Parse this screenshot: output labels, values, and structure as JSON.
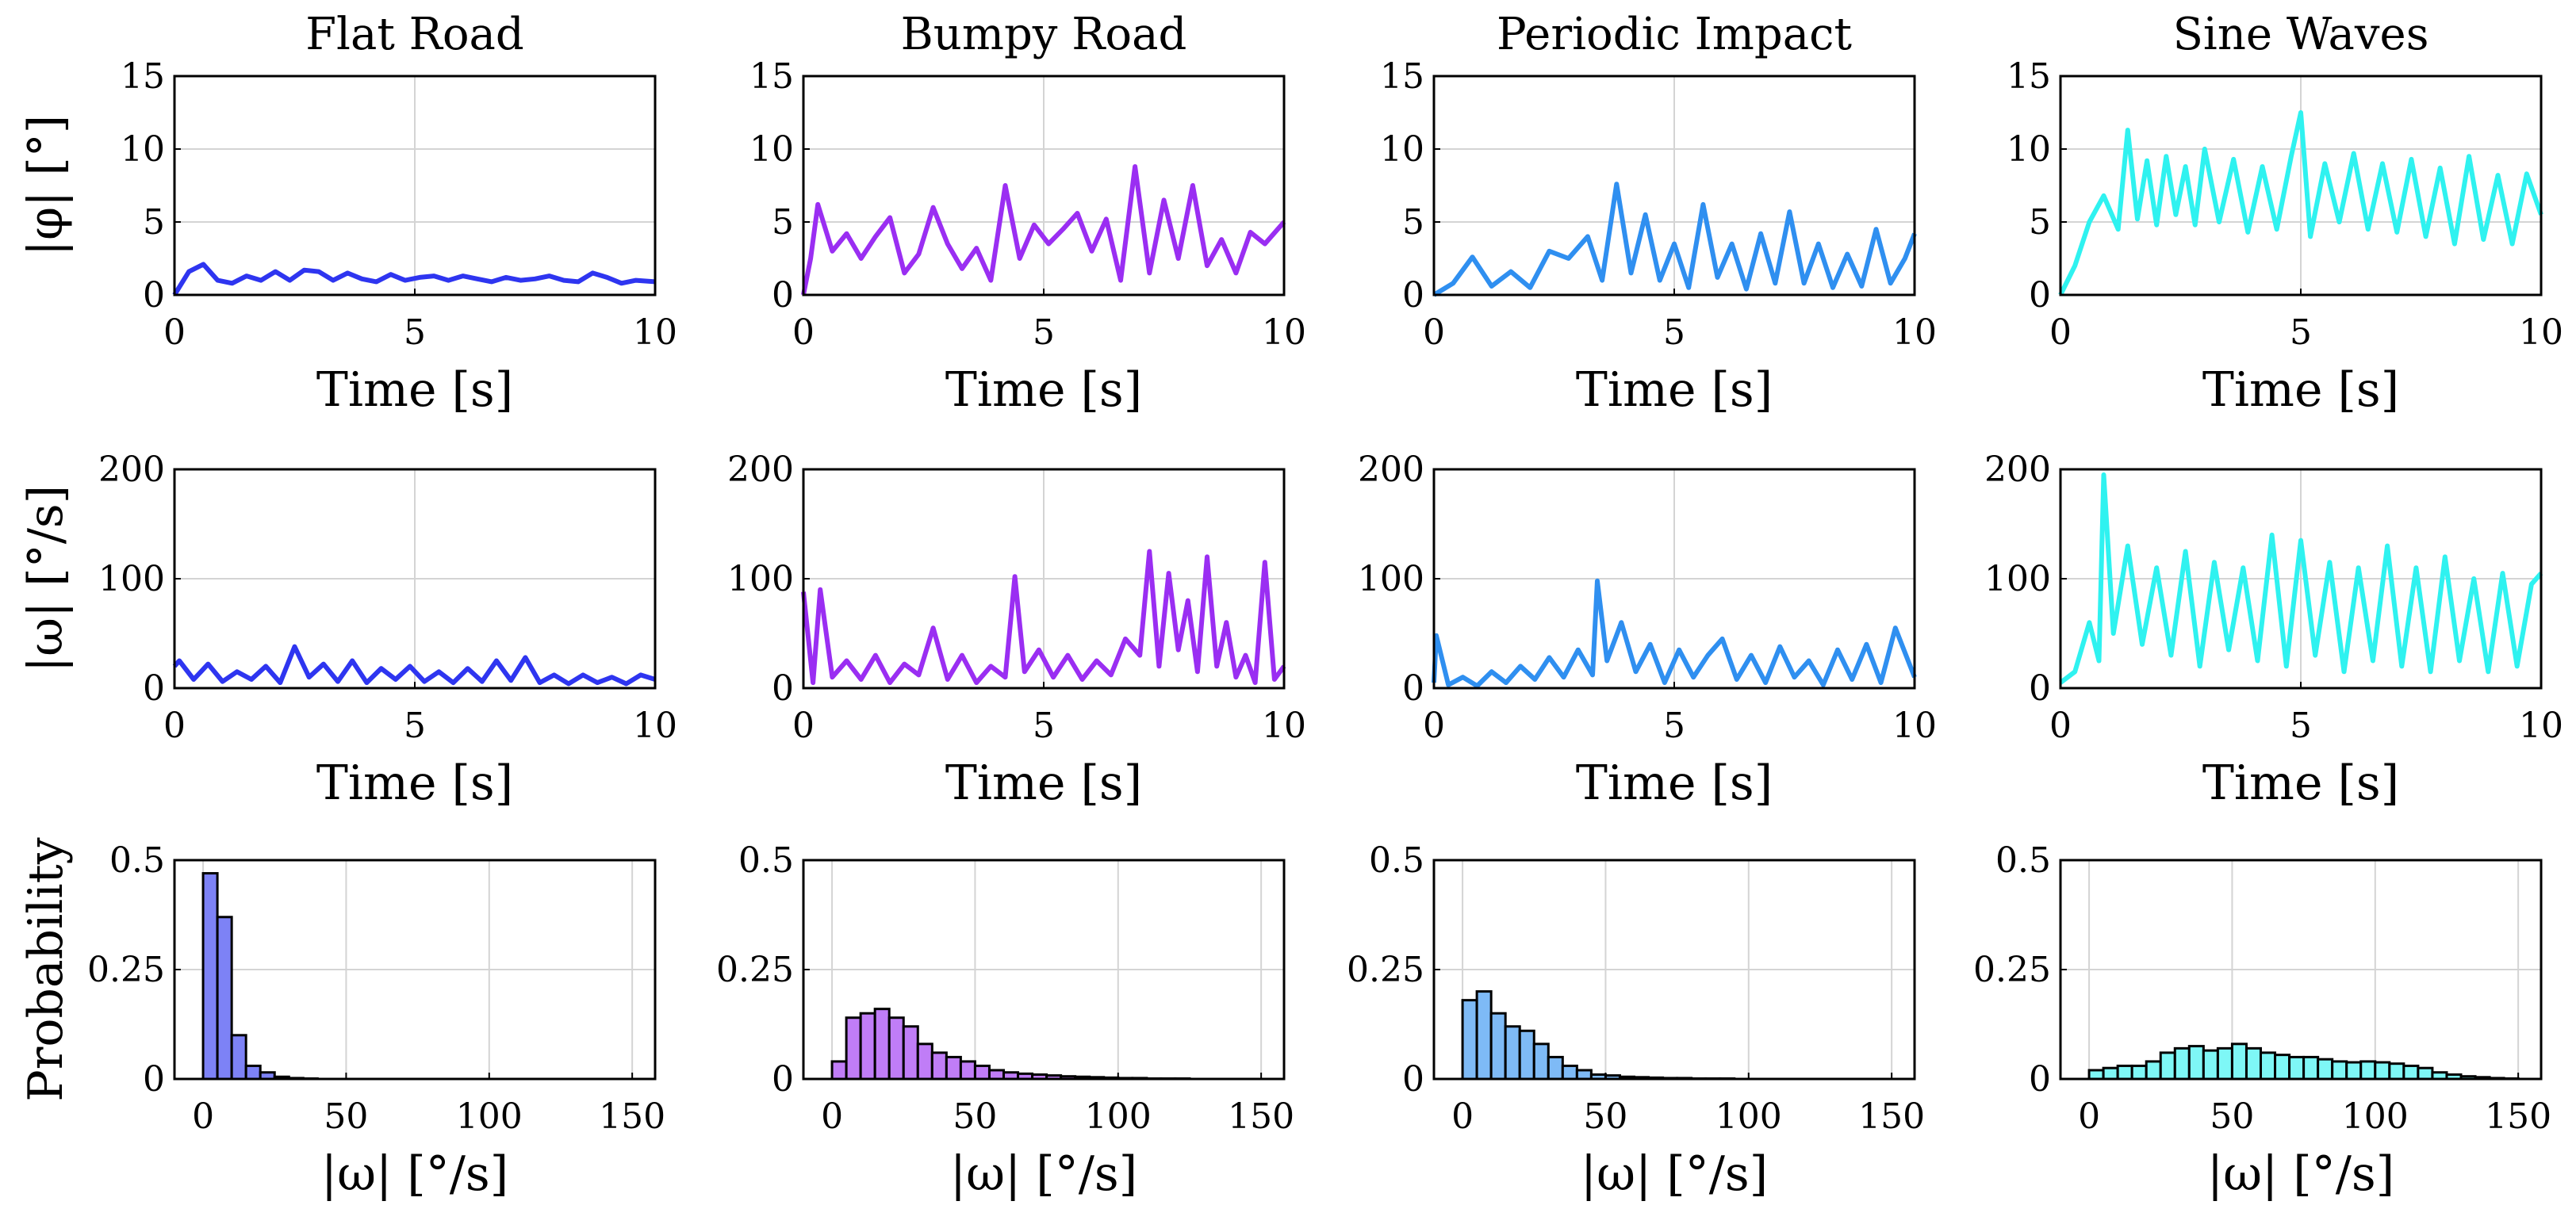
{
  "chart_data": {
    "type": "grid",
    "columns": [
      {
        "title": "Flat Road",
        "color": "#2e35f0"
      },
      {
        "title": "Bumpy Road",
        "color": "#9a2ef2"
      },
      {
        "title": "Periodic Impact",
        "color": "#2f8ff0"
      },
      {
        "title": "Sine Waves",
        "color": "#2ff2f0"
      }
    ],
    "rows": [
      {
        "type": "line",
        "ylabel": "|φ| [°]",
        "xlabel": "Time [s]",
        "xlim": [
          0,
          10
        ],
        "ylim": [
          0,
          15
        ],
        "xticks": [
          0,
          5,
          10
        ],
        "yticks": [
          0,
          5,
          10,
          15
        ],
        "series": [
          {
            "name": "Flat Road",
            "x": [
              0,
              0.3,
              0.6,
              0.9,
              1.2,
              1.5,
              1.8,
              2.1,
              2.4,
              2.7,
              3.0,
              3.3,
              3.6,
              3.9,
              4.2,
              4.5,
              4.8,
              5.1,
              5.4,
              5.7,
              6.0,
              6.3,
              6.6,
              6.9,
              7.2,
              7.5,
              7.8,
              8.1,
              8.4,
              8.7,
              9.0,
              9.3,
              9.6,
              10.0
            ],
            "y": [
              0,
              1.6,
              2.1,
              1.0,
              0.8,
              1.3,
              1.0,
              1.6,
              1.0,
              1.7,
              1.6,
              1.0,
              1.5,
              1.1,
              0.9,
              1.4,
              1.0,
              1.2,
              1.3,
              1.0,
              1.3,
              1.1,
              0.9,
              1.2,
              1.0,
              1.1,
              1.3,
              1.0,
              0.9,
              1.5,
              1.2,
              0.8,
              1.0,
              0.9
            ]
          },
          {
            "name": "Bumpy Road",
            "x": [
              0,
              0.15,
              0.3,
              0.6,
              0.9,
              1.2,
              1.5,
              1.8,
              2.1,
              2.4,
              2.7,
              3.0,
              3.3,
              3.6,
              3.9,
              4.2,
              4.5,
              4.8,
              5.1,
              5.4,
              5.7,
              6.0,
              6.3,
              6.6,
              6.9,
              7.2,
              7.5,
              7.8,
              8.1,
              8.4,
              8.7,
              9.0,
              9.3,
              9.6,
              10.0
            ],
            "y": [
              0,
              2.5,
              6.2,
              3.0,
              4.2,
              2.5,
              4.0,
              5.3,
              1.5,
              2.8,
              6.0,
              3.5,
              1.8,
              3.2,
              1.0,
              7.5,
              2.5,
              4.8,
              3.5,
              4.5,
              5.6,
              3.0,
              5.2,
              1.0,
              8.8,
              1.5,
              6.5,
              2.5,
              7.5,
              2.0,
              3.8,
              1.5,
              4.3,
              3.5,
              5.0
            ]
          },
          {
            "name": "Periodic Impact",
            "x": [
              0,
              0.4,
              0.8,
              1.2,
              1.6,
              2.0,
              2.4,
              2.8,
              3.2,
              3.5,
              3.8,
              4.1,
              4.4,
              4.7,
              5.0,
              5.3,
              5.6,
              5.9,
              6.2,
              6.5,
              6.8,
              7.1,
              7.4,
              7.7,
              8.0,
              8.3,
              8.6,
              8.9,
              9.2,
              9.5,
              9.8,
              10.0
            ],
            "y": [
              0,
              0.8,
              2.6,
              0.6,
              1.6,
              0.5,
              3.0,
              2.5,
              4.0,
              1.0,
              7.6,
              1.5,
              5.5,
              1.0,
              3.5,
              0.5,
              6.2,
              1.2,
              3.5,
              0.4,
              4.2,
              0.8,
              5.7,
              0.8,
              3.5,
              0.5,
              2.8,
              0.6,
              4.5,
              0.8,
              2.5,
              4.2
            ]
          },
          {
            "name": "Sine Waves",
            "x": [
              0,
              0.3,
              0.6,
              0.9,
              1.2,
              1.4,
              1.6,
              1.8,
              2.0,
              2.2,
              2.4,
              2.6,
              2.8,
              3.0,
              3.3,
              3.6,
              3.9,
              4.2,
              4.5,
              4.8,
              5.0,
              5.2,
              5.5,
              5.8,
              6.1,
              6.4,
              6.7,
              7.0,
              7.3,
              7.6,
              7.9,
              8.2,
              8.5,
              8.8,
              9.1,
              9.4,
              9.7,
              10.0
            ],
            "y": [
              0,
              2.0,
              5.0,
              6.8,
              4.5,
              11.3,
              5.2,
              9.2,
              4.8,
              9.5,
              5.5,
              8.8,
              4.8,
              10.0,
              5.0,
              9.3,
              4.3,
              8.8,
              4.5,
              9.5,
              12.5,
              4.0,
              9.0,
              5.0,
              9.7,
              4.5,
              9.0,
              4.3,
              9.3,
              4.0,
              8.7,
              3.5,
              9.5,
              3.8,
              8.2,
              3.5,
              8.3,
              5.5
            ]
          }
        ]
      },
      {
        "type": "line",
        "ylabel": "|ω| [°/s]",
        "xlabel": "Time [s]",
        "xlim": [
          0,
          10
        ],
        "ylim": [
          0,
          200
        ],
        "xticks": [
          0,
          5,
          10
        ],
        "yticks": [
          0,
          100,
          200
        ],
        "series": [
          {
            "name": "Flat Road",
            "x": [
              0,
              0.1,
              0.4,
              0.7,
              1.0,
              1.3,
              1.6,
              1.9,
              2.2,
              2.5,
              2.8,
              3.1,
              3.4,
              3.7,
              4.0,
              4.3,
              4.6,
              4.9,
              5.2,
              5.5,
              5.8,
              6.1,
              6.4,
              6.7,
              7.0,
              7.3,
              7.6,
              7.9,
              8.2,
              8.5,
              8.8,
              9.1,
              9.4,
              9.7,
              10.0
            ],
            "y": [
              20,
              25,
              8,
              22,
              6,
              15,
              8,
              20,
              5,
              38,
              10,
              22,
              6,
              25,
              5,
              18,
              8,
              20,
              6,
              15,
              5,
              18,
              6,
              25,
              7,
              28,
              5,
              12,
              4,
              12,
              5,
              10,
              4,
              12,
              8
            ]
          },
          {
            "name": "Bumpy Road",
            "x": [
              0,
              0.2,
              0.35,
              0.6,
              0.9,
              1.2,
              1.5,
              1.8,
              2.1,
              2.4,
              2.7,
              3.0,
              3.3,
              3.6,
              3.9,
              4.2,
              4.4,
              4.6,
              4.9,
              5.2,
              5.5,
              5.8,
              6.1,
              6.4,
              6.7,
              7.0,
              7.2,
              7.4,
              7.6,
              7.8,
              8.0,
              8.2,
              8.4,
              8.6,
              8.8,
              9.0,
              9.2,
              9.4,
              9.6,
              9.8,
              10.0
            ],
            "y": [
              88,
              5,
              90,
              10,
              25,
              8,
              30,
              5,
              22,
              12,
              55,
              8,
              30,
              5,
              20,
              10,
              102,
              15,
              35,
              10,
              30,
              8,
              25,
              12,
              45,
              30,
              125,
              20,
              105,
              35,
              80,
              15,
              120,
              20,
              60,
              10,
              30,
              5,
              115,
              8,
              20
            ]
          },
          {
            "name": "Periodic Impact",
            "x": [
              0,
              0.05,
              0.3,
              0.6,
              0.9,
              1.2,
              1.5,
              1.8,
              2.1,
              2.4,
              2.7,
              3.0,
              3.3,
              3.4,
              3.6,
              3.9,
              4.2,
              4.5,
              4.8,
              5.1,
              5.4,
              5.7,
              6.0,
              6.3,
              6.6,
              6.9,
              7.2,
              7.5,
              7.8,
              8.1,
              8.4,
              8.7,
              9.0,
              9.3,
              9.6,
              10.0
            ],
            "y": [
              5,
              48,
              3,
              10,
              2,
              15,
              5,
              20,
              8,
              28,
              10,
              35,
              12,
              98,
              25,
              60,
              15,
              40,
              5,
              35,
              10,
              30,
              45,
              8,
              30,
              5,
              38,
              10,
              25,
              3,
              35,
              8,
              40,
              5,
              55,
              10
            ]
          },
          {
            "name": "Sine Waves",
            "x": [
              0,
              0.3,
              0.6,
              0.8,
              0.9,
              1.1,
              1.4,
              1.7,
              2.0,
              2.3,
              2.6,
              2.9,
              3.2,
              3.5,
              3.8,
              4.1,
              4.4,
              4.7,
              5.0,
              5.3,
              5.6,
              5.9,
              6.2,
              6.5,
              6.8,
              7.1,
              7.4,
              7.7,
              8.0,
              8.3,
              8.6,
              8.9,
              9.2,
              9.5,
              9.8,
              10.0
            ],
            "y": [
              5,
              15,
              60,
              25,
              195,
              50,
              130,
              40,
              110,
              30,
              125,
              20,
              115,
              35,
              110,
              25,
              140,
              20,
              135,
              30,
              115,
              15,
              110,
              25,
              130,
              20,
              110,
              15,
              120,
              25,
              100,
              15,
              105,
              20,
              95,
              105
            ]
          }
        ]
      },
      {
        "type": "bar",
        "ylabel": "Probability",
        "xlabel": "|ω| [°/s]",
        "xlim": [
          -10,
          158
        ],
        "ylim": [
          0,
          0.5
        ],
        "xticks": [
          0,
          50,
          100,
          150
        ],
        "yticks": [
          0,
          0.25,
          0.5
        ],
        "ytick_labels": [
          "0",
          "0.25",
          "0.5"
        ],
        "bin_width": 5,
        "bin_start": 0,
        "series": [
          {
            "name": "Flat Road",
            "values": [
              0.47,
              0.37,
              0.1,
              0.03,
              0.015,
              0.005,
              0.002,
              0.001,
              0,
              0,
              0,
              0,
              0,
              0,
              0,
              0,
              0,
              0,
              0,
              0,
              0,
              0,
              0,
              0,
              0,
              0,
              0,
              0,
              0,
              0,
              0
            ]
          },
          {
            "name": "Bumpy Road",
            "values": [
              0.04,
              0.14,
              0.15,
              0.16,
              0.14,
              0.12,
              0.08,
              0.06,
              0.05,
              0.04,
              0.03,
              0.02,
              0.015,
              0.012,
              0.01,
              0.008,
              0.006,
              0.005,
              0.004,
              0.003,
              0.002,
              0.002,
              0.001,
              0.001,
              0.001,
              0,
              0,
              0,
              0,
              0,
              0
            ]
          },
          {
            "name": "Periodic Impact",
            "values": [
              0.18,
              0.2,
              0.15,
              0.12,
              0.11,
              0.08,
              0.05,
              0.03,
              0.02,
              0.01,
              0.008,
              0.005,
              0.004,
              0.003,
              0.002,
              0.002,
              0.001,
              0.001,
              0.001,
              0,
              0,
              0,
              0,
              0,
              0,
              0,
              0,
              0,
              0,
              0,
              0
            ]
          },
          {
            "name": "Sine Waves",
            "values": [
              0.02,
              0.025,
              0.03,
              0.03,
              0.04,
              0.06,
              0.07,
              0.075,
              0.065,
              0.07,
              0.08,
              0.07,
              0.06,
              0.055,
              0.05,
              0.05,
              0.045,
              0.04,
              0.038,
              0.04,
              0.038,
              0.035,
              0.03,
              0.025,
              0.015,
              0.01,
              0.006,
              0.004,
              0.002,
              0.001,
              0
            ]
          }
        ]
      }
    ]
  }
}
